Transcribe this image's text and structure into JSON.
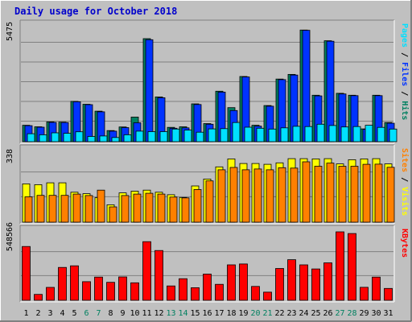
{
  "title": "Daily usage for October 2018",
  "colors": {
    "background": "#c0c0c0",
    "grid": "#808080",
    "pages": "#00e0ff",
    "files": "#0033ff",
    "hits": "#008060",
    "sites": "#ff8000",
    "visits": "#ffff00",
    "kbytes": "#ff0000",
    "weekend": "#008060",
    "title": "#0000cc"
  },
  "chart_data": [
    {
      "type": "bar",
      "panel": "hits-files-pages",
      "ymax_label": "5475",
      "ylim": [
        0,
        5475
      ],
      "side_label": [
        "Pages",
        "Files",
        "Hits"
      ],
      "categories": [
        "1",
        "2",
        "3",
        "4",
        "5",
        "6",
        "7",
        "8",
        "9",
        "10",
        "11",
        "12",
        "13",
        "14",
        "15",
        "16",
        "17",
        "18",
        "19",
        "20",
        "21",
        "22",
        "23",
        "24",
        "25",
        "26",
        "27",
        "28",
        "29",
        "30",
        "31"
      ],
      "series": [
        {
          "name": "Hits",
          "values": [
            780,
            710,
            940,
            930,
            1920,
            1780,
            1450,
            530,
            700,
            1170,
            4900,
            2130,
            680,
            710,
            1800,
            860,
            2400,
            1620,
            3100,
            780,
            1720,
            2980,
            3200,
            5310,
            2210,
            4800,
            2300,
            2210,
            610,
            2210,
            910
          ]
        },
        {
          "name": "Files",
          "values": [
            760,
            690,
            920,
            910,
            1900,
            1760,
            1420,
            500,
            670,
            900,
            4850,
            2090,
            640,
            660,
            1770,
            830,
            2360,
            1480,
            3080,
            740,
            1690,
            2950,
            3170,
            5300,
            2180,
            4780,
            2270,
            2190,
            590,
            2190,
            880
          ]
        },
        {
          "name": "Pages",
          "values": [
            380,
            330,
            420,
            400,
            470,
            250,
            270,
            200,
            330,
            500,
            480,
            480,
            600,
            550,
            450,
            610,
            620,
            910,
            690,
            640,
            600,
            660,
            730,
            720,
            830,
            770,
            700,
            720,
            780,
            680,
            600
          ]
        }
      ]
    },
    {
      "type": "bar",
      "panel": "visits-sites",
      "ymax_label": "338",
      "ylim": [
        0,
        338
      ],
      "side_label": [
        "Sites",
        "Visits"
      ],
      "categories": [
        "1",
        "2",
        "3",
        "4",
        "5",
        "6",
        "7",
        "8",
        "9",
        "10",
        "11",
        "12",
        "13",
        "14",
        "15",
        "16",
        "17",
        "18",
        "19",
        "20",
        "21",
        "22",
        "23",
        "24",
        "25",
        "26",
        "27",
        "28",
        "29",
        "30",
        "31"
      ],
      "series": [
        {
          "name": "Visits",
          "values": [
            183,
            179,
            188,
            188,
            143,
            136,
            117,
            83,
            140,
            148,
            153,
            143,
            131,
            118,
            173,
            206,
            264,
            302,
            280,
            280,
            276,
            283,
            303,
            303,
            302,
            303,
            278,
            298,
            302,
            303,
            278
          ]
        },
        {
          "name": "Sites",
          "values": [
            121,
            128,
            128,
            128,
            134,
            127,
            153,
            73,
            127,
            134,
            138,
            134,
            120,
            116,
            156,
            197,
            250,
            261,
            250,
            254,
            250,
            260,
            258,
            288,
            267,
            282,
            267,
            267,
            276,
            277,
            262
          ]
        }
      ]
    },
    {
      "type": "bar",
      "panel": "kbytes",
      "ymax_label": "548566",
      "ylim": [
        0,
        548566
      ],
      "side_label": [
        "KBytes"
      ],
      "categories": [
        "1",
        "2",
        "3",
        "4",
        "5",
        "6",
        "7",
        "8",
        "9",
        "10",
        "11",
        "12",
        "13",
        "14",
        "15",
        "16",
        "17",
        "18",
        "19",
        "20",
        "21",
        "22",
        "23",
        "24",
        "25",
        "26",
        "27",
        "28",
        "29",
        "30",
        "31"
      ],
      "series": [
        {
          "name": "KBytes",
          "values": [
            431000,
            47000,
            103000,
            263000,
            276000,
            149000,
            186000,
            144000,
            187000,
            140000,
            470000,
            399000,
            115000,
            173000,
            101000,
            210000,
            128000,
            284000,
            291000,
            111000,
            65000,
            255000,
            325000,
            284000,
            251000,
            300000,
            548566,
            535000,
            104000,
            186000,
            95000
          ]
        }
      ]
    }
  ],
  "weekend_days": [
    6,
    7,
    13,
    14,
    20,
    21,
    27,
    28
  ]
}
